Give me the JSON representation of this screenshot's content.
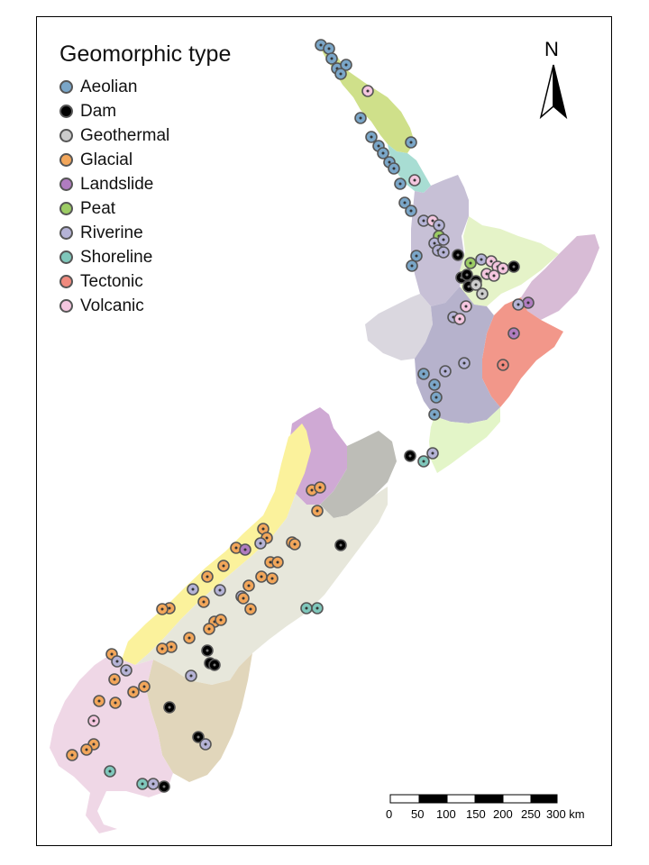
{
  "legend": {
    "title": "Geomorphic type",
    "items": [
      {
        "label": "Aeolian",
        "color": "#7aa6c8"
      },
      {
        "label": "Dam",
        "color": "#000000"
      },
      {
        "label": "Geothermal",
        "color": "#cccccc"
      },
      {
        "label": "Glacial",
        "color": "#f2a65a"
      },
      {
        "label": "Landslide",
        "color": "#b07cc0"
      },
      {
        "label": "Peat",
        "color": "#9ccc64"
      },
      {
        "label": "Riverine",
        "color": "#b5b3d6"
      },
      {
        "label": "Shoreline",
        "color": "#7fc7bb"
      },
      {
        "label": "Tectonic",
        "color": "#f08a7e"
      },
      {
        "label": "Volcanic",
        "color": "#f4c6df"
      }
    ]
  },
  "north_arrow": {
    "label": "N"
  },
  "scale_bar": {
    "ticks": [
      "0",
      "50",
      "100",
      "150",
      "200",
      "250",
      "300 km"
    ]
  },
  "region_colors": [
    "#cfe08a",
    "#a8ddd3",
    "#c7c0d6",
    "#e5f3c8",
    "#d8bcd6",
    "#f2978a",
    "#dad7df",
    "#b6b2cc",
    "#e3f5c8",
    "#fbf29c",
    "#cfa9d4",
    "#bdbdb7",
    "#e7e7db",
    "#e1d6bb",
    "#efd7e6"
  ],
  "point_colors": {
    "aeolian": "#7aa6c8",
    "dam": "#000000",
    "geothermal": "#cccccc",
    "glacial": "#f2a65a",
    "landslide": "#b07cc0",
    "peat": "#9ccc64",
    "riverine": "#b5b3d6",
    "shoreline": "#7fc7bb",
    "tectonic": "#f08a7e",
    "volcanic": "#f4c6df"
  }
}
